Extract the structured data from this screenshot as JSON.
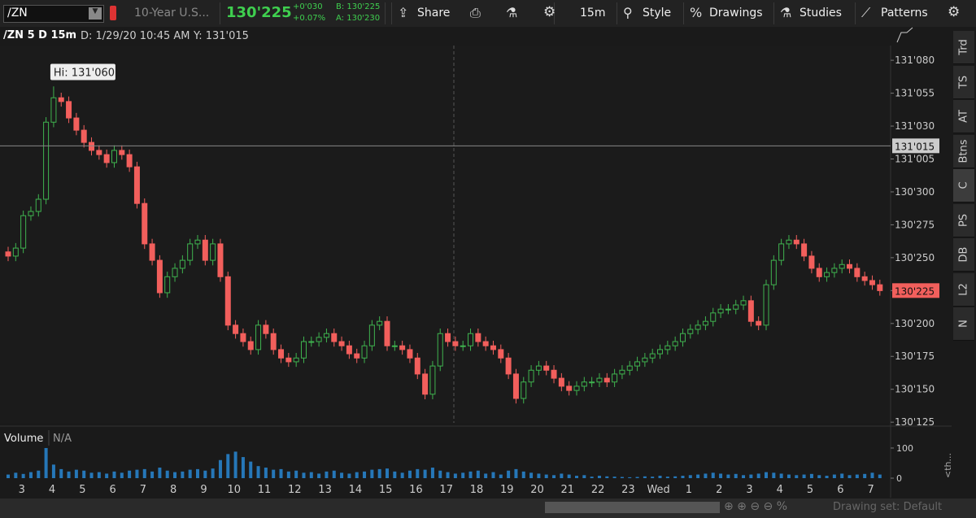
{
  "toolbar": {
    "symbol": "/ZN",
    "description": "10-Year U.S...",
    "last": "130'225",
    "change": "+0'030",
    "change_pct": "+0.07%",
    "bid": "B: 130'225",
    "ask": "A: 130'230",
    "buttons": [
      "Share",
      "15m",
      "Style",
      "Drawings",
      "Studies",
      "Patterns"
    ]
  },
  "chart_header": {
    "title": "/ZN 5 D 15m",
    "date": "D: 1/29/20 10:45 AM",
    "y": "Y: 131'015"
  },
  "side_tabs": [
    "Trd",
    "TS",
    "AT",
    "Btns",
    "C",
    "PS",
    "DB",
    "L2",
    "N"
  ],
  "status": {
    "collapse": "<th...",
    "drawing_set": "Drawing set: Default"
  },
  "chart_data": [
    {
      "type": "candlestick",
      "up_color": "#3fb34f",
      "down_color": "#f25f5c",
      "open": [
        130.795,
        130.785,
        130.804,
        130.881,
        130.891,
        130.92,
        131.103,
        131.161,
        131.152,
        131.113,
        131.084,
        131.055,
        131.036,
        131.026,
        131.007,
        131.036,
        131.026,
        130.997,
        130.91,
        130.814,
        130.775,
        130.698,
        130.736,
        130.756,
        130.775,
        130.814,
        130.823,
        130.775,
        130.814,
        130.736,
        130.621,
        130.601,
        130.582,
        130.563,
        130.621,
        130.601,
        130.563,
        130.543,
        130.534,
        130.543,
        130.582,
        130.582,
        130.592,
        130.601,
        130.582,
        130.572,
        130.553,
        130.543,
        130.572,
        130.621,
        130.63,
        130.572,
        130.572,
        130.563,
        130.543,
        130.505,
        130.457,
        130.524,
        130.601,
        130.582,
        130.572,
        130.572,
        130.601,
        130.582,
        130.572,
        130.563,
        130.543,
        130.505,
        130.447,
        130.486,
        130.514,
        130.524,
        130.514,
        130.495,
        130.476,
        130.466,
        130.476,
        130.486,
        130.486,
        130.495,
        130.486,
        130.505,
        130.514,
        130.524,
        130.534,
        130.543,
        130.553,
        130.563,
        130.572,
        130.582,
        130.601,
        130.611,
        130.621,
        130.63,
        130.65,
        130.659,
        130.659,
        130.669,
        130.679,
        130.63,
        130.621,
        130.717,
        130.775,
        130.814,
        130.823,
        130.814,
        130.785,
        130.756,
        130.736,
        130.746,
        130.756,
        130.765,
        130.756,
        130.736,
        130.727,
        130.717
      ],
      "high": [
        130.807,
        130.816,
        130.893,
        130.903,
        130.932,
        131.115,
        131.188,
        131.173,
        131.164,
        131.125,
        131.096,
        131.067,
        131.048,
        131.038,
        131.048,
        131.048,
        131.038,
        131.009,
        130.922,
        130.826,
        130.787,
        130.748,
        130.768,
        130.787,
        130.826,
        130.835,
        130.835,
        130.826,
        130.826,
        130.748,
        130.633,
        130.613,
        130.594,
        130.633,
        130.633,
        130.613,
        130.575,
        130.555,
        130.555,
        130.594,
        130.594,
        130.604,
        130.613,
        130.613,
        130.594,
        130.584,
        130.565,
        130.584,
        130.633,
        130.642,
        130.642,
        130.584,
        130.584,
        130.575,
        130.555,
        130.517,
        130.536,
        130.613,
        130.613,
        130.594,
        130.584,
        130.613,
        130.613,
        130.594,
        130.584,
        130.575,
        130.555,
        130.517,
        130.498,
        130.526,
        130.536,
        130.536,
        130.526,
        130.507,
        130.488,
        130.488,
        130.498,
        130.498,
        130.507,
        130.507,
        130.517,
        130.526,
        130.536,
        130.546,
        130.555,
        130.565,
        130.575,
        130.584,
        130.594,
        130.613,
        130.623,
        130.633,
        130.642,
        130.662,
        130.671,
        130.671,
        130.681,
        130.691,
        130.691,
        130.642,
        130.729,
        130.787,
        130.826,
        130.835,
        130.835,
        130.826,
        130.797,
        130.768,
        130.758,
        130.768,
        130.777,
        130.777,
        130.768,
        130.748,
        130.739,
        130.729
      ],
      "low": [
        130.773,
        130.773,
        130.792,
        130.869,
        130.879,
        130.908,
        131.091,
        131.14,
        131.101,
        131.072,
        131.043,
        131.024,
        131.014,
        130.995,
        130.995,
        131.014,
        130.985,
        130.898,
        130.802,
        130.763,
        130.686,
        130.686,
        130.724,
        130.744,
        130.763,
        130.802,
        130.763,
        130.763,
        130.724,
        130.609,
        130.589,
        130.57,
        130.551,
        130.551,
        130.589,
        130.551,
        130.531,
        130.522,
        130.522,
        130.531,
        130.57,
        130.57,
        130.58,
        130.57,
        130.56,
        130.541,
        130.531,
        130.531,
        130.56,
        130.609,
        130.56,
        130.56,
        130.551,
        130.531,
        130.493,
        130.445,
        130.445,
        130.512,
        130.57,
        130.56,
        130.56,
        130.56,
        130.57,
        130.56,
        130.551,
        130.531,
        130.493,
        130.435,
        130.435,
        130.474,
        130.502,
        130.502,
        130.483,
        130.464,
        130.454,
        130.454,
        130.464,
        130.474,
        130.474,
        130.474,
        130.474,
        130.493,
        130.502,
        130.512,
        130.522,
        130.531,
        130.541,
        130.551,
        130.56,
        130.57,
        130.589,
        130.599,
        130.609,
        130.618,
        130.638,
        130.647,
        130.647,
        130.657,
        130.618,
        130.609,
        130.609,
        130.705,
        130.763,
        130.802,
        130.802,
        130.773,
        130.744,
        130.724,
        130.724,
        130.734,
        130.744,
        130.744,
        130.724,
        130.715,
        130.705,
        130.691
      ],
      "close": [
        130.785,
        130.804,
        130.881,
        130.891,
        130.92,
        131.103,
        131.161,
        131.152,
        131.113,
        131.084,
        131.055,
        131.036,
        131.026,
        131.007,
        131.036,
        131.026,
        130.997,
        130.91,
        130.814,
        130.775,
        130.698,
        130.736,
        130.756,
        130.775,
        130.814,
        130.823,
        130.775,
        130.814,
        130.736,
        130.621,
        130.601,
        130.582,
        130.563,
        130.621,
        130.601,
        130.563,
        130.543,
        130.534,
        130.543,
        130.582,
        130.582,
        130.592,
        130.601,
        130.582,
        130.572,
        130.553,
        130.543,
        130.572,
        130.621,
        130.63,
        130.572,
        130.572,
        130.563,
        130.543,
        130.505,
        130.457,
        130.524,
        130.601,
        130.582,
        130.572,
        130.572,
        130.601,
        130.582,
        130.572,
        130.563,
        130.543,
        130.505,
        130.447,
        130.486,
        130.514,
        130.524,
        130.514,
        130.495,
        130.476,
        130.466,
        130.476,
        130.486,
        130.486,
        130.495,
        130.486,
        130.505,
        130.514,
        130.524,
        130.534,
        130.543,
        130.553,
        130.563,
        130.572,
        130.582,
        130.601,
        130.611,
        130.621,
        130.63,
        130.65,
        130.659,
        130.659,
        130.669,
        130.679,
        130.63,
        130.621,
        130.717,
        130.775,
        130.814,
        130.823,
        130.814,
        130.785,
        130.756,
        130.736,
        130.746,
        130.756,
        130.765,
        130.756,
        130.736,
        130.727,
        130.717,
        130.703
      ],
      "ylim": [
        130.389,
        131.285
      ],
      "yticks": [
        {
          "value": 130.390625,
          "label": "130'125"
        },
        {
          "value": 130.46875,
          "label": "130'150"
        },
        {
          "value": 130.546875,
          "label": "130'175"
        },
        {
          "value": 130.625,
          "label": "130'200"
        },
        {
          "value": 130.703125,
          "label": "130'225"
        },
        {
          "value": 130.78125,
          "label": "130'250"
        },
        {
          "value": 130.859375,
          "label": "130'275"
        },
        {
          "value": 130.9375,
          "label": "130'300"
        },
        {
          "value": 131.015625,
          "label": "131'005"
        },
        {
          "value": 131.09375,
          "label": "131'030"
        },
        {
          "value": 131.171875,
          "label": "131'055"
        },
        {
          "value": 131.25,
          "label": "131'080"
        }
      ],
      "high_label": {
        "value": 131.1875,
        "label": "Hi: 131'060"
      },
      "crosshair": {
        "value": 131.046875,
        "label": "131'015"
      },
      "last_price": {
        "value": 130.703125,
        "label": "130'225"
      },
      "time_labels": [
        "3",
        "4",
        "5",
        "6",
        "7",
        "8",
        "9",
        "10",
        "11",
        "12",
        "13",
        "14",
        "15",
        "16",
        "17",
        "18",
        "19",
        "20",
        "21",
        "22",
        "23",
        "Wed",
        "1",
        "2",
        "3",
        "4",
        "5",
        "6",
        "7"
      ]
    },
    {
      "type": "bar",
      "title": "Volume",
      "subtitle": "N/A",
      "color": "#2677b8",
      "ylim": [
        0,
        108
      ],
      "yticks": [
        0,
        100
      ],
      "values": [
        12,
        18,
        14,
        20,
        25,
        100,
        45,
        30,
        22,
        28,
        25,
        18,
        20,
        15,
        22,
        18,
        25,
        28,
        30,
        22,
        35,
        25,
        20,
        22,
        28,
        30,
        25,
        32,
        60,
        80,
        88,
        70,
        55,
        40,
        35,
        28,
        30,
        22,
        25,
        18,
        20,
        15,
        22,
        25,
        18,
        15,
        20,
        22,
        28,
        30,
        32,
        22,
        18,
        25,
        30,
        28,
        35,
        25,
        20,
        15,
        18,
        22,
        25,
        15,
        20,
        12,
        25,
        30,
        22,
        18,
        15,
        12,
        10,
        15,
        12,
        8,
        10,
        5,
        8,
        6,
        5,
        4,
        3,
        4,
        6,
        5,
        8,
        5,
        6,
        8,
        10,
        12,
        15,
        18,
        15,
        12,
        14,
        10,
        12,
        15,
        20,
        18,
        15,
        12,
        10,
        12,
        14,
        10,
        8,
        12,
        15,
        10,
        12,
        14,
        18,
        12
      ]
    }
  ]
}
